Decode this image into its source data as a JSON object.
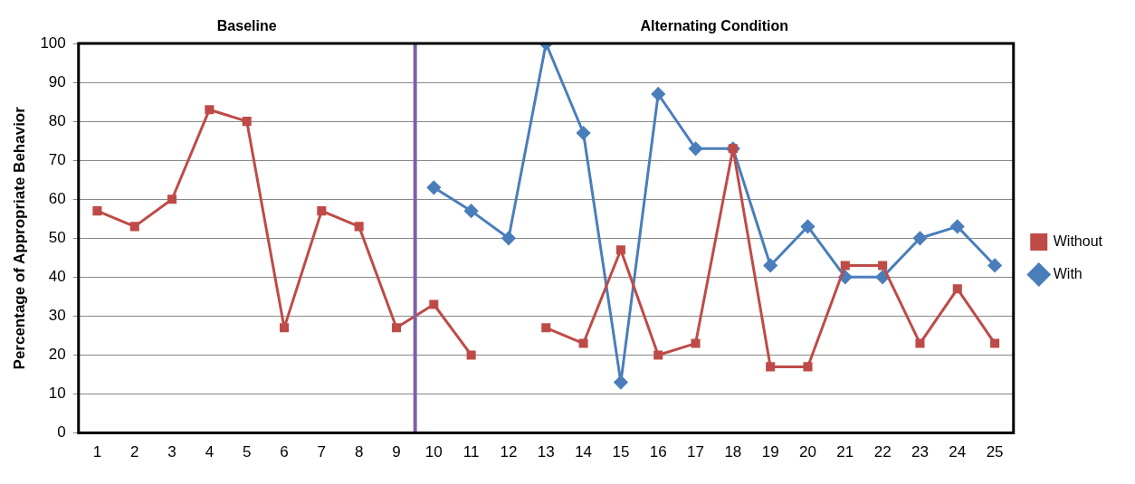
{
  "chart_data": {
    "type": "line",
    "ylabel": "Percentage of Appropriate Behavior",
    "x": [
      1,
      2,
      3,
      4,
      5,
      6,
      7,
      8,
      9,
      10,
      11,
      12,
      13,
      14,
      15,
      16,
      17,
      18,
      19,
      20,
      21,
      22,
      23,
      24,
      25
    ],
    "xlim": [
      0.5,
      25.5
    ],
    "xticks": [
      1,
      2,
      3,
      4,
      5,
      6,
      7,
      8,
      9,
      10,
      11,
      12,
      13,
      14,
      15,
      16,
      17,
      18,
      19,
      20,
      21,
      22,
      23,
      24,
      25
    ],
    "ylim": [
      0,
      100
    ],
    "yticks": [
      0,
      10,
      20,
      30,
      40,
      50,
      60,
      70,
      80,
      90,
      100
    ],
    "grid": "y",
    "legend": "right",
    "line_style": "solid",
    "series": [
      {
        "name": "With",
        "color": "#4a7ebb",
        "marker": "diamond",
        "values": [
          null,
          null,
          null,
          null,
          null,
          null,
          null,
          null,
          null,
          63,
          57,
          50,
          100,
          77,
          13,
          87,
          73,
          73,
          43,
          53,
          40,
          40,
          50,
          53,
          43
        ]
      },
      {
        "name": "Without",
        "color": "#be4b48",
        "marker": "square",
        "values": [
          57,
          53,
          60,
          83,
          80,
          27,
          57,
          53,
          27,
          33,
          20,
          null,
          27,
          23,
          47,
          20,
          23,
          73,
          17,
          17,
          43,
          43,
          23,
          37,
          23
        ]
      }
    ],
    "ref_lines": [
      {
        "axis": "x",
        "value": 9.5,
        "color": "#7e60a8"
      }
    ],
    "annotations": [
      "Baseline",
      "Alternating Condition"
    ]
  }
}
